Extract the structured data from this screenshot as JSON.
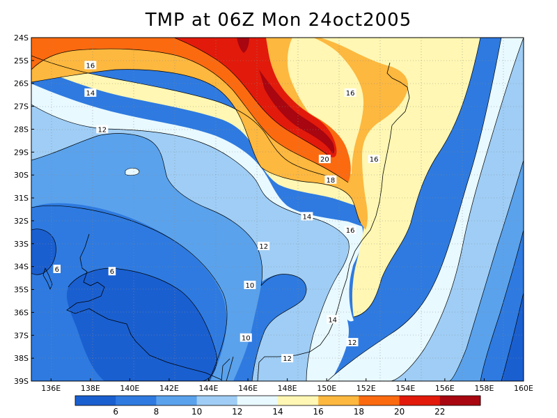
{
  "title": "TMP at 06Z Mon 24oct2005",
  "lat_labels": [
    "24S",
    "25S",
    "26S",
    "27S",
    "28S",
    "29S",
    "30S",
    "31S",
    "32S",
    "33S",
    "34S",
    "35S",
    "36S",
    "37S",
    "38S",
    "39S"
  ],
  "lon_labels": [
    "136E",
    "138E",
    "140E",
    "142E",
    "144E",
    "146E",
    "148E",
    "150E",
    "152E",
    "154E",
    "156E",
    "158E",
    "160E"
  ],
  "colorbar": {
    "tick_labels": [
      "6",
      "8",
      "10",
      "12",
      "14",
      "16",
      "18",
      "20",
      "22"
    ],
    "colors": [
      "#1a5fd0",
      "#2e7ae0",
      "#5aa2ec",
      "#9fcdf5",
      "#e8f9ff",
      "#fff7b3",
      "#fdb83f",
      "#fc6a10",
      "#e21a0b",
      "#a80610"
    ]
  },
  "contour_labels": [
    {
      "text": "16",
      "lon": 138.0,
      "lat": -25.2
    },
    {
      "text": "14",
      "lon": 138.0,
      "lat": -26.4
    },
    {
      "text": "12",
      "lon": 138.6,
      "lat": -28.0
    },
    {
      "text": "20",
      "lon": 149.9,
      "lat": -29.3
    },
    {
      "text": "18",
      "lon": 150.2,
      "lat": -30.2
    },
    {
      "text": "16",
      "lon": 151.2,
      "lat": -26.4
    },
    {
      "text": "16",
      "lon": 152.4,
      "lat": -29.3
    },
    {
      "text": "16",
      "lon": 151.2,
      "lat": -32.4
    },
    {
      "text": "14",
      "lon": 149.0,
      "lat": -31.8
    },
    {
      "text": "12",
      "lon": 146.8,
      "lat": -33.1
    },
    {
      "text": "10",
      "lon": 146.1,
      "lat": -34.8
    },
    {
      "text": "10",
      "lon": 145.9,
      "lat": -37.1
    },
    {
      "text": "12",
      "lon": 148.0,
      "lat": -38.0
    },
    {
      "text": "12",
      "lon": 151.3,
      "lat": -37.3
    },
    {
      "text": "14",
      "lon": 150.3,
      "lat": -36.3
    },
    {
      "text": "6",
      "lon": 136.3,
      "lat": -34.1
    },
    {
      "text": "6",
      "lon": 139.1,
      "lat": -34.2
    }
  ]
}
